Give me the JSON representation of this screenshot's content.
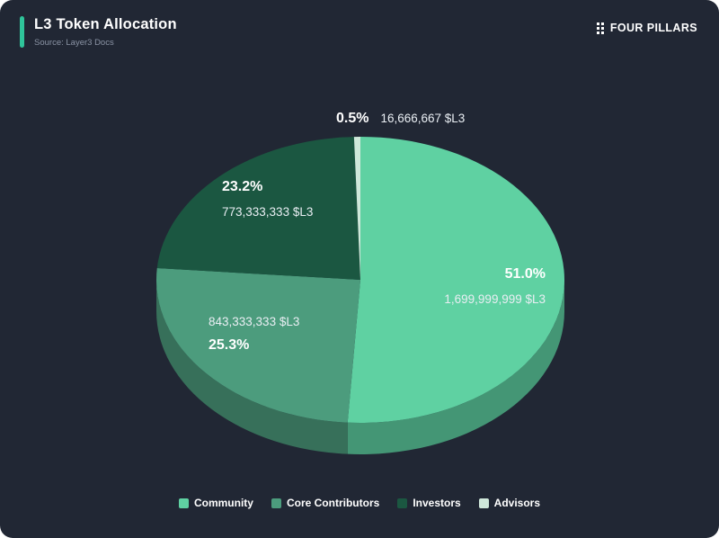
{
  "header": {
    "title": "L3 Token Allocation",
    "source": "Source: Layer3 Docs",
    "brand": "FOUR PILLARS"
  },
  "chart_data": {
    "type": "pie",
    "title": "L3 Token Allocation",
    "source": "Layer3 Docs",
    "unit": "$L3",
    "legend_position": "bottom",
    "slices": [
      {
        "label": "Community",
        "percent": 51.0,
        "amount": 1699999999,
        "amount_label": "1,699,999,999 $L3",
        "color": "#5fd1a2"
      },
      {
        "label": "Core Contributors",
        "percent": 25.3,
        "amount": 843333333,
        "amount_label": "843,333,333 $L3",
        "color": "#4c9c7d"
      },
      {
        "label": "Investors",
        "percent": 23.2,
        "amount": 773333333,
        "amount_label": "773,333,333 $L3",
        "color": "#1b5741"
      },
      {
        "label": "Advisors",
        "percent": 0.5,
        "amount": 16666667,
        "amount_label": "16,666,667 $L3",
        "color": "#cfe8da"
      }
    ]
  },
  "labels": {
    "community": {
      "percent": "51.0%",
      "amount": "1,699,999,999 $L3"
    },
    "core": {
      "percent": "25.3%",
      "amount": "843,333,333 $L3"
    },
    "investors": {
      "percent": "23.2%",
      "amount": "773,333,333 $L3"
    },
    "advisors": {
      "percent": "0.5%",
      "amount": "16,666,667 $L3"
    }
  },
  "colors": {
    "background": "#212734",
    "accent": "#2fc49a",
    "text": "#ffffff",
    "muted": "#8b94a5"
  }
}
